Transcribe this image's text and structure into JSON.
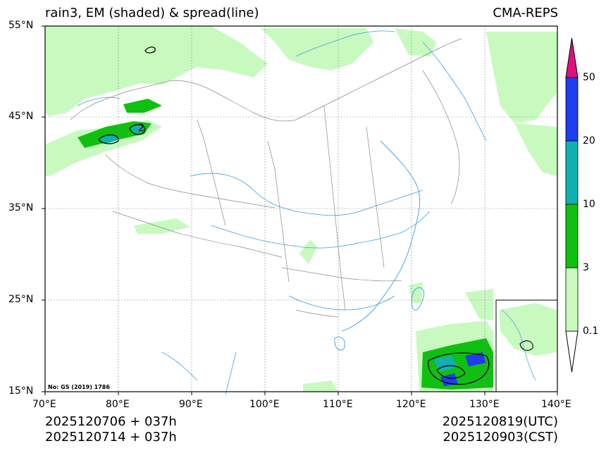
{
  "map": {
    "title_left": "rain3, EM (shaded) & spread(line)",
    "title_right": "CMA-REPS",
    "lat_labels": [
      "55°N",
      "45°N",
      "35°N",
      "25°N",
      "15°N"
    ],
    "lon_labels": [
      "70°E",
      "80°E",
      "90°E",
      "100°E",
      "110°E",
      "120°E",
      "130°E",
      "140°E"
    ],
    "approval_no": "No: GS (2019) 1786",
    "contour_label": "2"
  },
  "footer": {
    "init_utc": "2025120706  +  037h",
    "init_cst": "2025120714  +  037h",
    "valid_utc": "2025120819(UTC)",
    "valid_cst": "2025120903(CST)"
  },
  "colorbar": {
    "levels": [
      "0.1",
      "3",
      "10",
      "20",
      "50"
    ],
    "colors": {
      "below": "#ffffff",
      "c1": "#c8fac0",
      "c2": "#10c010",
      "c3": "#10b0b0",
      "c4": "#1e3cf0",
      "above": "#e0107a"
    }
  },
  "colors": {
    "rain_light": "#c8fac0",
    "rain_moderate": "#10c010",
    "rain_heavy": "#10b0b0",
    "rain_very_heavy": "#1e3cf0",
    "river": "#3aa0e0",
    "border": "#888888",
    "grid": "#888888"
  }
}
